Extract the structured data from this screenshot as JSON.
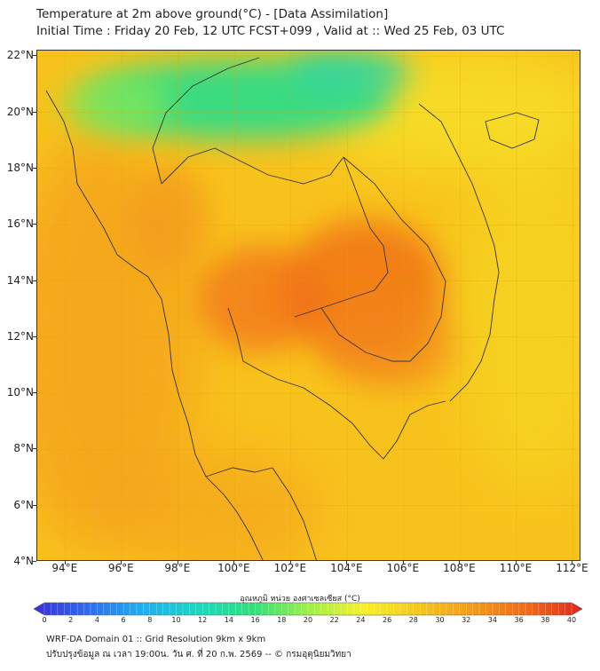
{
  "title_line1": "Temperature at 2m above ground(°C) - [Data Assimilation]",
  "title_line2": "Initial Time : Friday 20 Feb, 12 UTC FCST+099 , Valid at :: Wed 25 Feb, 03 UTC",
  "lat_labels": [
    "22°N",
    "20°N",
    "18°N",
    "16°N",
    "14°N",
    "12°N",
    "10°N",
    "8°N",
    "6°N",
    "4°N"
  ],
  "lon_labels": [
    "94°E",
    "96°E",
    "98°E",
    "100°E",
    "102°E",
    "104°E",
    "106°E",
    "108°E",
    "110°E",
    "112°E"
  ],
  "map_extent": {
    "lon_min": 93,
    "lon_max": 112.3,
    "lat_min": 4,
    "lat_max": 22.2
  },
  "colorbar": {
    "title": "อุณหภูมิ หน่วย องศาเซลเซียส (°C)",
    "min": 0,
    "max": 40,
    "unit": "°C",
    "tick_labels": [
      "0",
      "2",
      "4",
      "6",
      "8",
      "10",
      "12",
      "14",
      "16",
      "18",
      "20",
      "22",
      "24",
      "26",
      "28",
      "30",
      "32",
      "34",
      "36",
      "38",
      "40"
    ],
    "colors": [
      "#3a2fd6",
      "#2f6cf0",
      "#1fb0f0",
      "#19d9c0",
      "#30e07a",
      "#9cf04a",
      "#f6f02a",
      "#f5c81c",
      "#f39a1a",
      "#ef6a18",
      "#e0261c"
    ]
  },
  "footer_line1": "WRF-DA Domain 01 :: Grid Resolution 9km x 9km",
  "footer_line2": "ปรับปรุงข้อมูล ณ เวลา 19:00น. วัน ศ. ที่ 20 ก.พ. 2569 -- © กรมอุตุนิยมวิทยา",
  "temperature_field": {
    "base_color": "#f8c21d",
    "regions": [
      {
        "name": "cool-north-highlands",
        "temp_c": 20,
        "color": "#30dd86"
      },
      {
        "name": "warm-central-thailand",
        "temp_c": 34,
        "color": "#f3781a"
      },
      {
        "name": "warm-northeast-cambodia",
        "temp_c": 35,
        "color": "#f06a18"
      },
      {
        "name": "warm-andaman-sea",
        "temp_c": 31,
        "color": "#f4a01c"
      },
      {
        "name": "mild-south-china-sea",
        "temp_c": 27,
        "color": "#f5d624"
      }
    ]
  }
}
